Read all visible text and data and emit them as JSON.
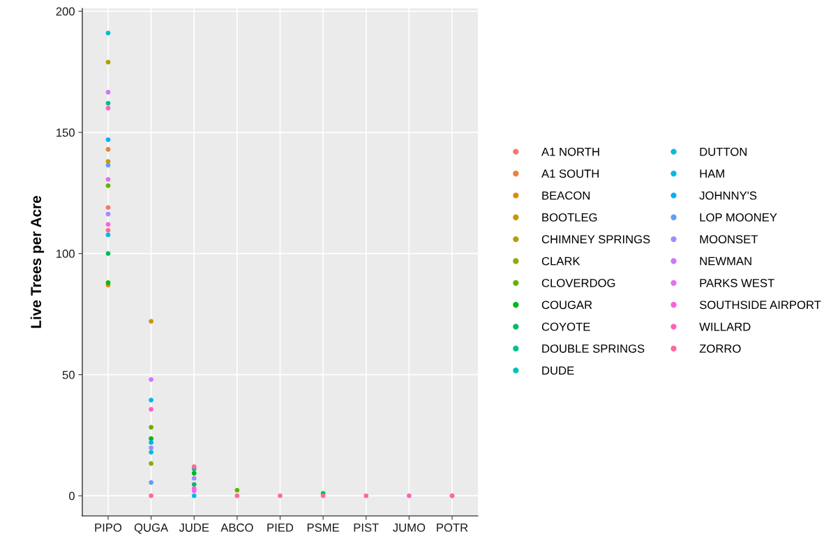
{
  "chart_data": {
    "type": "scatter",
    "ylabel": "Live Trees per Acre",
    "categories": [
      "PIPO",
      "QUGA",
      "JUDE",
      "ABCO",
      "PIED",
      "PSME",
      "PIST",
      "JUMO",
      "POTR"
    ],
    "ylim": [
      -8.3,
      201.2
    ],
    "yticks": [
      0,
      50,
      100,
      150,
      200
    ],
    "grid": true,
    "legend": "right",
    "marker": "circle",
    "series": [
      {
        "name": "A1 NORTH",
        "color": "#F8766D",
        "values": [
          119,
          null,
          null,
          null,
          null,
          null,
          null,
          null,
          0
        ]
      },
      {
        "name": "A1 SOUTH",
        "color": "#EC8239",
        "values": [
          143,
          null,
          null,
          null,
          null,
          null,
          null,
          null,
          null
        ]
      },
      {
        "name": "BEACON",
        "color": "#DB8E00",
        "values": [
          87,
          null,
          null,
          null,
          null,
          null,
          null,
          null,
          null
        ]
      },
      {
        "name": "BOOTLEG",
        "color": "#C79800",
        "values": [
          138,
          72,
          null,
          null,
          null,
          null,
          null,
          null,
          null
        ]
      },
      {
        "name": "CHIMNEY SPRINGS",
        "color": "#AEA200",
        "values": [
          179,
          null,
          null,
          null,
          null,
          null,
          null,
          null,
          null
        ]
      },
      {
        "name": "CLARK",
        "color": "#8FAA00",
        "values": [
          null,
          13.3,
          null,
          null,
          null,
          null,
          null,
          null,
          null
        ]
      },
      {
        "name": "CLOVERDOG",
        "color": "#64B200",
        "values": [
          128,
          28.3,
          null,
          2.3,
          null,
          null,
          null,
          null,
          null
        ]
      },
      {
        "name": "COUGAR",
        "color": "#00B81B",
        "values": [
          88,
          23.6,
          9.3,
          null,
          null,
          null,
          null,
          null,
          null
        ]
      },
      {
        "name": "COYOTE",
        "color": "#00BD5C",
        "values": [
          100,
          null,
          4.7,
          null,
          null,
          1,
          null,
          null,
          null
        ]
      },
      {
        "name": "DOUBLE SPRINGS",
        "color": "#00C08D",
        "values": [
          162,
          null,
          11,
          null,
          null,
          null,
          null,
          null,
          null
        ]
      },
      {
        "name": "DUDE",
        "color": "#00C1B2",
        "values": [
          null,
          null,
          null,
          null,
          null,
          null,
          null,
          null,
          null
        ]
      },
      {
        "name": "DUTTON",
        "color": "#00BFD1",
        "values": [
          191,
          18,
          null,
          null,
          null,
          null,
          null,
          null,
          null
        ]
      },
      {
        "name": "HAM",
        "color": "#00BAE9",
        "values": [
          107.7,
          39.5,
          0,
          null,
          null,
          null,
          null,
          null,
          null
        ]
      },
      {
        "name": "JOHNNY'S",
        "color": "#00B2F9",
        "values": [
          147,
          22,
          null,
          null,
          null,
          null,
          null,
          null,
          null
        ]
      },
      {
        "name": "LOP MOONEY",
        "color": "#619CFF",
        "values": [
          136.5,
          5.5,
          null,
          null,
          null,
          null,
          null,
          null,
          null
        ]
      },
      {
        "name": "MOONSET",
        "color": "#A58AFF",
        "values": [
          116.3,
          19.8,
          7.2,
          null,
          null,
          null,
          null,
          null,
          null
        ]
      },
      {
        "name": "NEWMAN",
        "color": "#CB79FF",
        "values": [
          166.6,
          48,
          null,
          null,
          null,
          null,
          null,
          null,
          null
        ]
      },
      {
        "name": "PARKS WEST",
        "color": "#E86BF3",
        "values": [
          130.6,
          null,
          2,
          null,
          null,
          null,
          null,
          null,
          null
        ]
      },
      {
        "name": "SOUTHSIDE AIRPORT",
        "color": "#FA62DC",
        "values": [
          112,
          null,
          3,
          null,
          null,
          null,
          null,
          null,
          null
        ]
      },
      {
        "name": "WILLARD",
        "color": "#FF62BE",
        "values": [
          160,
          35.7,
          null,
          null,
          null,
          null,
          null,
          0,
          null
        ]
      },
      {
        "name": "ZORRO",
        "color": "#FF6A98",
        "values": [
          109.6,
          0,
          12,
          0,
          0,
          0,
          0,
          null,
          0
        ]
      }
    ]
  }
}
